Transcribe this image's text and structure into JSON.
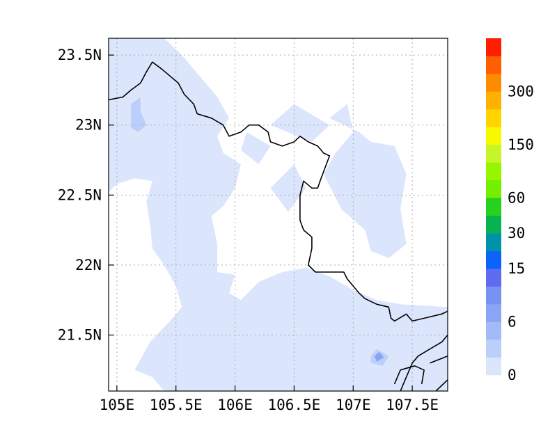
{
  "map": {
    "lon_range": [
      104.93,
      107.8
    ],
    "lat_range": [
      21.1,
      23.62
    ],
    "grid": true,
    "x_ticks": [
      {
        "value": 105.0,
        "label": "105E"
      },
      {
        "value": 105.5,
        "label": "105.5E"
      },
      {
        "value": 106.0,
        "label": "106E"
      },
      {
        "value": 106.5,
        "label": "106.5E"
      },
      {
        "value": 107.0,
        "label": "107E"
      },
      {
        "value": 107.5,
        "label": "107.5E"
      }
    ],
    "y_ticks": [
      {
        "value": 23.5,
        "label": "23.5N"
      },
      {
        "value": 23.0,
        "label": "23N"
      },
      {
        "value": 22.5,
        "label": "22.5N"
      },
      {
        "value": 22.0,
        "label": "22N"
      },
      {
        "value": 21.5,
        "label": "21.5N"
      }
    ],
    "colors": {
      "light_fill": "#dbe6fc",
      "medium_fill": "#bccffa",
      "dark_fill": "#8aa4f6",
      "border": "#000000"
    },
    "precip_regions": [
      [
        [
          104.93,
          23.62
        ],
        [
          105.4,
          23.62
        ],
        [
          105.55,
          23.5
        ],
        [
          105.7,
          23.35
        ],
        [
          105.85,
          23.2
        ],
        [
          105.95,
          23.05
        ],
        [
          105.85,
          22.92
        ],
        [
          105.9,
          22.8
        ],
        [
          106.05,
          22.72
        ],
        [
          106.0,
          22.55
        ],
        [
          105.9,
          22.42
        ],
        [
          105.8,
          22.35
        ],
        [
          105.85,
          22.15
        ],
        [
          105.85,
          21.95
        ],
        [
          106.0,
          21.93
        ],
        [
          105.95,
          21.8
        ],
        [
          106.05,
          21.75
        ],
        [
          106.2,
          21.88
        ],
        [
          106.4,
          21.95
        ],
        [
          106.6,
          21.98
        ],
        [
          106.8,
          21.92
        ],
        [
          107.0,
          21.82
        ],
        [
          107.2,
          21.75
        ],
        [
          107.4,
          21.72
        ],
        [
          107.8,
          21.7
        ],
        [
          107.8,
          21.1
        ],
        [
          105.4,
          21.1
        ],
        [
          105.3,
          21.2
        ],
        [
          105.15,
          21.25
        ],
        [
          105.28,
          21.45
        ],
        [
          105.45,
          21.6
        ],
        [
          105.55,
          21.7
        ],
        [
          105.5,
          21.85
        ],
        [
          105.4,
          22.0
        ],
        [
          105.3,
          22.12
        ],
        [
          105.28,
          22.3
        ],
        [
          105.25,
          22.45
        ],
        [
          105.3,
          22.6
        ],
        [
          105.15,
          22.62
        ],
        [
          105.0,
          22.58
        ],
        [
          104.93,
          22.52
        ]
      ],
      [
        [
          106.1,
          22.95
        ],
        [
          106.3,
          22.85
        ],
        [
          106.2,
          22.72
        ],
        [
          106.05,
          22.82
        ]
      ],
      [
        [
          106.3,
          22.55
        ],
        [
          106.5,
          22.72
        ],
        [
          106.6,
          22.55
        ],
        [
          106.45,
          22.38
        ]
      ],
      [
        [
          106.3,
          23.0
        ],
        [
          106.5,
          23.15
        ],
        [
          106.8,
          23.0
        ],
        [
          106.65,
          22.88
        ]
      ],
      [
        [
          106.8,
          23.05
        ],
        [
          106.95,
          23.15
        ],
        [
          107.0,
          22.95
        ],
        [
          106.85,
          22.8
        ],
        [
          106.75,
          22.65
        ],
        [
          106.9,
          22.4
        ],
        [
          107.1,
          22.25
        ],
        [
          107.15,
          22.1
        ],
        [
          107.3,
          22.05
        ],
        [
          107.45,
          22.15
        ],
        [
          107.4,
          22.4
        ],
        [
          107.45,
          22.65
        ],
        [
          107.35,
          22.85
        ],
        [
          107.15,
          22.88
        ],
        [
          107.05,
          22.95
        ]
      ],
      [
        [
          105.45,
          23.5
        ],
        [
          105.55,
          23.5
        ],
        [
          105.5,
          23.42
        ]
      ]
    ],
    "precip_medium": [
      [
        [
          105.2,
          23.1
        ],
        [
          105.25,
          23.0
        ],
        [
          105.18,
          22.95
        ],
        [
          105.12,
          22.98
        ],
        [
          105.12,
          23.15
        ],
        [
          105.2,
          23.2
        ]
      ],
      [
        [
          107.15,
          21.35
        ],
        [
          107.2,
          21.4
        ],
        [
          107.3,
          21.35
        ],
        [
          107.25,
          21.28
        ],
        [
          107.15,
          21.3
        ]
      ]
    ],
    "precip_dark": [
      [
        [
          107.18,
          21.35
        ],
        [
          107.22,
          21.38
        ],
        [
          107.26,
          21.34
        ],
        [
          107.2,
          21.31
        ]
      ]
    ],
    "border_lines": [
      [
        [
          104.93,
          23.18
        ],
        [
          105.05,
          23.2
        ],
        [
          105.12,
          23.25
        ],
        [
          105.2,
          23.3
        ],
        [
          105.25,
          23.38
        ],
        [
          105.3,
          23.45
        ],
        [
          105.38,
          23.4
        ],
        [
          105.45,
          23.35
        ],
        [
          105.52,
          23.3
        ],
        [
          105.57,
          23.22
        ],
        [
          105.65,
          23.15
        ],
        [
          105.68,
          23.08
        ],
        [
          105.8,
          23.05
        ],
        [
          105.9,
          23.0
        ],
        [
          105.95,
          22.92
        ],
        [
          106.05,
          22.95
        ],
        [
          106.12,
          23.0
        ],
        [
          106.2,
          23.0
        ],
        [
          106.28,
          22.95
        ],
        [
          106.3,
          22.88
        ],
        [
          106.4,
          22.85
        ],
        [
          106.5,
          22.88
        ],
        [
          106.55,
          22.92
        ],
        [
          106.62,
          22.88
        ],
        [
          106.7,
          22.85
        ],
        [
          106.75,
          22.8
        ],
        [
          106.8,
          22.78
        ],
        [
          106.72,
          22.6
        ],
        [
          106.7,
          22.55
        ],
        [
          106.65,
          22.55
        ],
        [
          106.58,
          22.6
        ],
        [
          106.55,
          22.5
        ],
        [
          106.55,
          22.4
        ],
        [
          106.55,
          22.32
        ],
        [
          106.58,
          22.25
        ],
        [
          106.65,
          22.2
        ],
        [
          106.65,
          22.12
        ],
        [
          106.62,
          22.0
        ],
        [
          106.68,
          21.95
        ],
        [
          106.72,
          21.95
        ],
        [
          106.8,
          21.95
        ],
        [
          106.92,
          21.95
        ],
        [
          106.95,
          21.9
        ],
        [
          107.0,
          21.85
        ],
        [
          107.05,
          21.8
        ],
        [
          107.1,
          21.76
        ],
        [
          107.2,
          21.72
        ],
        [
          107.3,
          21.7
        ],
        [
          107.32,
          21.62
        ],
        [
          107.35,
          21.6
        ],
        [
          107.45,
          21.65
        ],
        [
          107.5,
          21.6
        ],
        [
          107.6,
          21.62
        ],
        [
          107.75,
          21.65
        ],
        [
          107.8,
          21.67
        ]
      ],
      [
        [
          107.4,
          21.1
        ],
        [
          107.45,
          21.2
        ],
        [
          107.5,
          21.3
        ],
        [
          107.55,
          21.35
        ],
        [
          107.65,
          21.4
        ],
        [
          107.75,
          21.45
        ],
        [
          107.8,
          21.5
        ]
      ],
      [
        [
          107.35,
          21.15
        ],
        [
          107.4,
          21.25
        ],
        [
          107.52,
          21.28
        ],
        [
          107.6,
          21.25
        ],
        [
          107.58,
          21.15
        ]
      ],
      [
        [
          107.65,
          21.3
        ],
        [
          107.8,
          21.35
        ]
      ],
      [
        [
          107.7,
          21.1
        ],
        [
          107.8,
          21.18
        ]
      ]
    ]
  },
  "colorbar": {
    "colors": [
      "#dbe6fc",
      "#bccffa",
      "#a2bbf8",
      "#8aa4f6",
      "#7792f2",
      "#5f6cf0",
      "#0a64fa",
      "#0093a8",
      "#07b250",
      "#26d21e",
      "#73f000",
      "#95f600",
      "#c6f52a",
      "#f6fa00",
      "#ffd400",
      "#ffb000",
      "#ff8c00",
      "#ff5f00",
      "#ff1e00"
    ],
    "labels": [
      {
        "index": 0,
        "text": "0"
      },
      {
        "index": 3,
        "text": "6"
      },
      {
        "index": 6,
        "text": "15"
      },
      {
        "index": 8,
        "text": "30"
      },
      {
        "index": 10,
        "text": "60"
      },
      {
        "index": 13,
        "text": "150"
      },
      {
        "index": 16,
        "text": "300"
      }
    ]
  }
}
